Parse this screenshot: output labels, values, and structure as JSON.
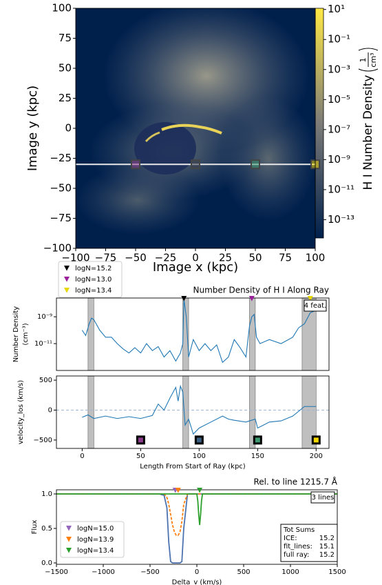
{
  "chart_data": [
    {
      "type": "heatmap",
      "xlabel": "Image x  (kpc)",
      "ylabel": "Image y  (kpc)",
      "xlim": [
        -100,
        100
      ],
      "ylim": [
        -100,
        100
      ],
      "xticks": [
        {
          "value": -100,
          "label": "−100"
        },
        {
          "value": -75,
          "label": "−75"
        },
        {
          "value": -50,
          "label": "−50"
        },
        {
          "value": -25,
          "label": "−25"
        },
        0,
        25,
        50,
        75,
        100
      ],
      "yticks": [
        {
          "value": -100,
          "label": "−100"
        },
        {
          "value": -75,
          "label": "−75"
        },
        {
          "value": -50,
          "label": "−50"
        },
        {
          "value": -25,
          "label": "−25"
        },
        0,
        25,
        50,
        75,
        100
      ],
      "colorbar_label": "H I Number Density",
      "colorbar_unit_num": "1",
      "colorbar_unit_den": "cm³",
      "clim": [
        6e-15,
        12
      ],
      "log_colorbar": true,
      "cticks": [
        {
          "value": 10,
          "label": "10¹"
        },
        {
          "value": 0.1,
          "label": "10⁻¹"
        },
        {
          "value": 0.001,
          "label": "10⁻³"
        },
        {
          "value": 1e-05,
          "label": "10⁻⁵"
        },
        {
          "value": 1e-07,
          "label": "10⁻⁷"
        },
        {
          "value": 1e-09,
          "label": "10⁻⁹"
        },
        {
          "value": 1e-11,
          "label": "10⁻¹¹"
        },
        {
          "value": 1e-13,
          "label": "10⁻¹³"
        }
      ],
      "colormap": [
        "#00204c",
        "#7c7b78",
        "#ffe945"
      ],
      "ray": {
        "y": -30,
        "x": [
          -100,
          100
        ],
        "color": "#e8e8e8"
      },
      "markers": {
        "x": [
          -50,
          0,
          50,
          100
        ],
        "y": [
          -30,
          -30,
          -30,
          -30
        ],
        "colors": [
          "#8c3c8c",
          "#3a3f4a",
          "#3d9970",
          "#f5d800"
        ]
      }
    },
    {
      "type": "line",
      "title": "Number Density of H I Along Ray",
      "ylabel": [
        "Number Density",
        "(cm⁻³)"
      ],
      "xlim": [
        -22,
        211
      ],
      "ylim": [
        1e-13,
        2.5e-08
      ],
      "log_y": true,
      "yticks": [
        {
          "value": 1e-09,
          "label": "10⁻⁹"
        },
        {
          "value": 1e-11,
          "label": "10⁻¹¹"
        }
      ],
      "series": [
        {
          "color": "#1f77b4",
          "x": [
            0,
            3,
            6,
            8,
            10,
            15,
            20,
            25,
            30,
            35,
            40,
            45,
            50,
            55,
            60,
            65,
            70,
            75,
            80,
            84,
            86,
            87,
            89,
            91,
            95,
            100,
            105,
            110,
            115,
            120,
            125,
            130,
            135,
            140,
            143,
            145,
            147,
            149,
            152,
            160,
            170,
            180,
            185,
            190,
            195,
            200
          ],
          "values": [
            1e-10,
            4e-11,
            3e-10,
            8e-10,
            6e-10,
            1e-10,
            3e-11,
            3e-11,
            1e-11,
            4e-12,
            2e-12,
            5e-12,
            2e-12,
            1e-11,
            3e-12,
            6e-12,
            1e-12,
            3e-12,
            5e-13,
            2e-12,
            1e-11,
            2e-08,
            1e-09,
            1e-12,
            2e-11,
            3e-12,
            1e-11,
            3e-12,
            8e-12,
            4e-13,
            1e-12,
            2e-11,
            5e-12,
            1e-12,
            2e-10,
            1e-09,
            1.5e-09,
            3e-11,
            1e-11,
            2e-11,
            1e-11,
            3e-11,
            1.5e-10,
            3e-10,
            2e-09,
            3e-09
          ]
        }
      ],
      "regions": [
        [
          5,
          10
        ],
        [
          86,
          91
        ],
        [
          143,
          148
        ],
        [
          188,
          200
        ]
      ],
      "region_color": "#bfbfbf",
      "features": [
        {
          "name": "logN=15.2",
          "color": "#000000",
          "x": 87
        },
        {
          "name": "logN=13.0",
          "color": "#9b1f9b",
          "x": 145
        },
        {
          "name": "logN=13.4",
          "color": "#e6d800",
          "x": 195
        }
      ],
      "annotation": "4 feat."
    },
    {
      "type": "line",
      "ylabel": "velocity_los (km/s)",
      "xlabel": "Length From Start of Ray (kpc)",
      "xlim": [
        -22,
        211
      ],
      "ylim": [
        -640,
        570
      ],
      "xticks": [
        0,
        50,
        100,
        150,
        200
      ],
      "yticks": [
        {
          "value": -500,
          "label": "−500"
        },
        0,
        500
      ],
      "hline": 0,
      "series": [
        {
          "color": "#1f77b4",
          "x": [
            0,
            5,
            10,
            20,
            30,
            40,
            50,
            60,
            65,
            70,
            75,
            80,
            82,
            84,
            86,
            88,
            91,
            95,
            100,
            110,
            120,
            125,
            130,
            140,
            148,
            150,
            160,
            170,
            180,
            190,
            200
          ],
          "values": [
            -120,
            -80,
            -140,
            -100,
            -140,
            -110,
            -140,
            -90,
            100,
            0,
            200,
            380,
            150,
            400,
            300,
            -250,
            -150,
            -400,
            -300,
            -200,
            -100,
            -150,
            -170,
            -200,
            -150,
            -300,
            -200,
            -180,
            -100,
            60,
            60
          ]
        }
      ],
      "regions": [
        [
          5,
          10
        ],
        [
          86,
          91
        ],
        [
          143,
          148
        ],
        [
          188,
          200
        ]
      ],
      "region_color": "#bfbfbf",
      "markers": {
        "x": [
          50,
          100,
          150,
          200
        ],
        "y": [
          -500,
          -500,
          -500,
          -500
        ],
        "colors": [
          "#8c3c8c",
          "#3a5f80",
          "#3d9970",
          "#f5d800"
        ]
      }
    },
    {
      "type": "line",
      "title": "Rel. to line 1215.7 Å",
      "xlabel": "Delta_v (km/s)",
      "ylabel": "Flux",
      "xlim": [
        -1500,
        1500
      ],
      "ylim": [
        -0.02,
        1.06
      ],
      "xticks": [
        {
          "value": -1500,
          "label": "−1500"
        },
        {
          "value": -1000,
          "label": "−1000"
        },
        {
          "value": -500,
          "label": "−500"
        },
        0,
        500,
        1000,
        1500
      ],
      "yticks": [
        {
          "value": 0,
          "label": "0.0"
        },
        {
          "value": 0.5,
          "label": "0.5"
        },
        {
          "value": 1,
          "label": "1.0"
        }
      ],
      "hline": 1,
      "x": [
        -1500,
        -400,
        -350,
        -320,
        -300,
        -280,
        -260,
        -240,
        -220,
        -200,
        -180,
        -160,
        -140,
        -100,
        0,
        10,
        20,
        30,
        40,
        50,
        60,
        100,
        1500
      ],
      "series": [
        {
          "color": "#4c72b0",
          "values": [
            1,
            1,
            0.98,
            0.8,
            0.3,
            0.02,
            0,
            0,
            0,
            0,
            0,
            0.02,
            0.5,
            1,
            1,
            1,
            1,
            1,
            1,
            1,
            1,
            1,
            1
          ]
        },
        {
          "color": "#ff7f0e",
          "dash": true,
          "values": [
            1,
            1,
            1,
            0.95,
            0.85,
            0.7,
            0.55,
            0.45,
            0.4,
            0.4,
            0.45,
            0.6,
            0.85,
            1,
            1,
            1,
            1,
            1,
            1,
            1,
            1,
            1,
            1
          ]
        },
        {
          "color": "#2ca02c",
          "values": [
            1,
            1,
            1,
            1,
            1,
            1,
            1,
            1,
            1,
            1,
            1,
            1,
            1,
            1,
            1,
            0.9,
            0.7,
            0.55,
            0.7,
            0.9,
            1,
            1,
            1
          ]
        }
      ],
      "features": [
        {
          "name": "logN=15.0",
          "color": "#9467bd",
          "x": -230
        },
        {
          "name": "logN=13.9",
          "color": "#ff7f0e",
          "x": -200
        },
        {
          "name": "logN=13.4",
          "color": "#2ca02c",
          "x": 30
        }
      ],
      "annotation": "3 lines",
      "sums_title": "Tot Sums",
      "sums": [
        [
          "ICE:",
          "15.2"
        ],
        [
          "fit_lines:",
          "15.1"
        ],
        [
          "full ray:",
          "15.2"
        ]
      ]
    }
  ]
}
